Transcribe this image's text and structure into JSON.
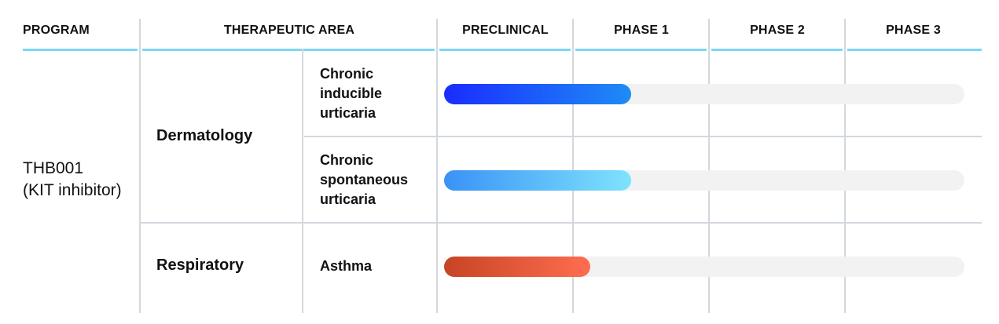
{
  "headers": {
    "program": "PROGRAM",
    "therapeutic_area": "THERAPEUTIC AREA",
    "preclinical": "PRECLINICAL",
    "phase1": "PHASE 1",
    "phase2": "PHASE 2",
    "phase3": "PHASE 3"
  },
  "program": {
    "line1": "THB001",
    "line2": "(KIT inhibitor)"
  },
  "areas": {
    "dermatology": "Dermatology",
    "respiratory": "Respiratory"
  },
  "indications": [
    {
      "lines": [
        "Chronic",
        "inducible",
        "urticaria"
      ],
      "progress_phases": 1.0,
      "gradient": [
        "#1a2cff",
        "#1e8cf5"
      ]
    },
    {
      "lines": [
        "Chronic",
        "spontaneous",
        "urticaria"
      ],
      "progress_phases": 1.0,
      "gradient": [
        "#3a92f5",
        "#7fe3fd"
      ]
    },
    {
      "lines": [
        "Asthma"
      ],
      "progress_phases": 0.7,
      "gradient": [
        "#c64524",
        "#ff6d50"
      ]
    }
  ],
  "colors": {
    "header_rule": "#7fd8f4",
    "grid": "#d3d8de",
    "track": "#f2f2f2"
  }
}
